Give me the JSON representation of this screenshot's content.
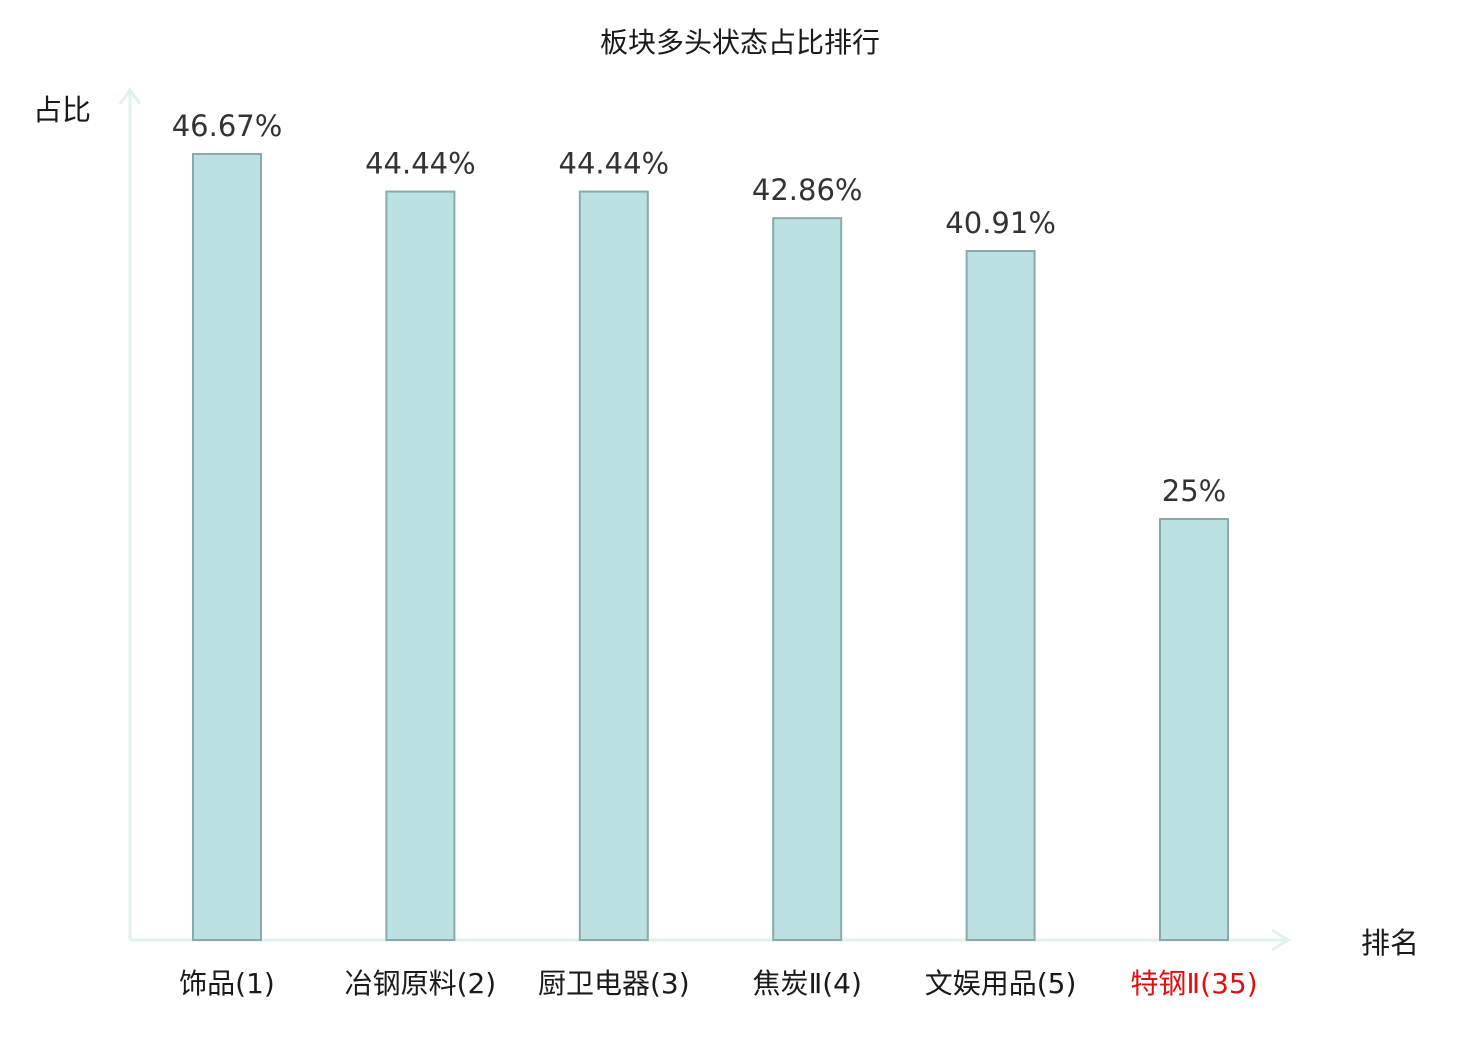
{
  "chart_data": {
    "type": "bar",
    "title": "板块多头状态占比排行",
    "xlabel": "排名",
    "ylabel": "占比",
    "categories": [
      "饰品(1)",
      "冶钢原料(2)",
      "厨卫电器(3)",
      "焦炭Ⅱ(4)",
      "文娱用品(5)",
      "特钢Ⅱ(35)"
    ],
    "values": [
      46.67,
      44.44,
      44.44,
      42.86,
      40.91,
      25
    ],
    "value_labels": [
      "46.67%",
      "44.44%",
      "44.44%",
      "42.86%",
      "40.91%",
      "25%"
    ],
    "highlight_index": 5,
    "ylim": [
      0,
      50
    ],
    "grid": false
  },
  "colors": {
    "bar_fill": "#bce1e3",
    "bar_stroke": "#8aa9aa",
    "axis": "#dff2ef",
    "highlight_text": "#e01010",
    "text": "#1a1a1a"
  }
}
